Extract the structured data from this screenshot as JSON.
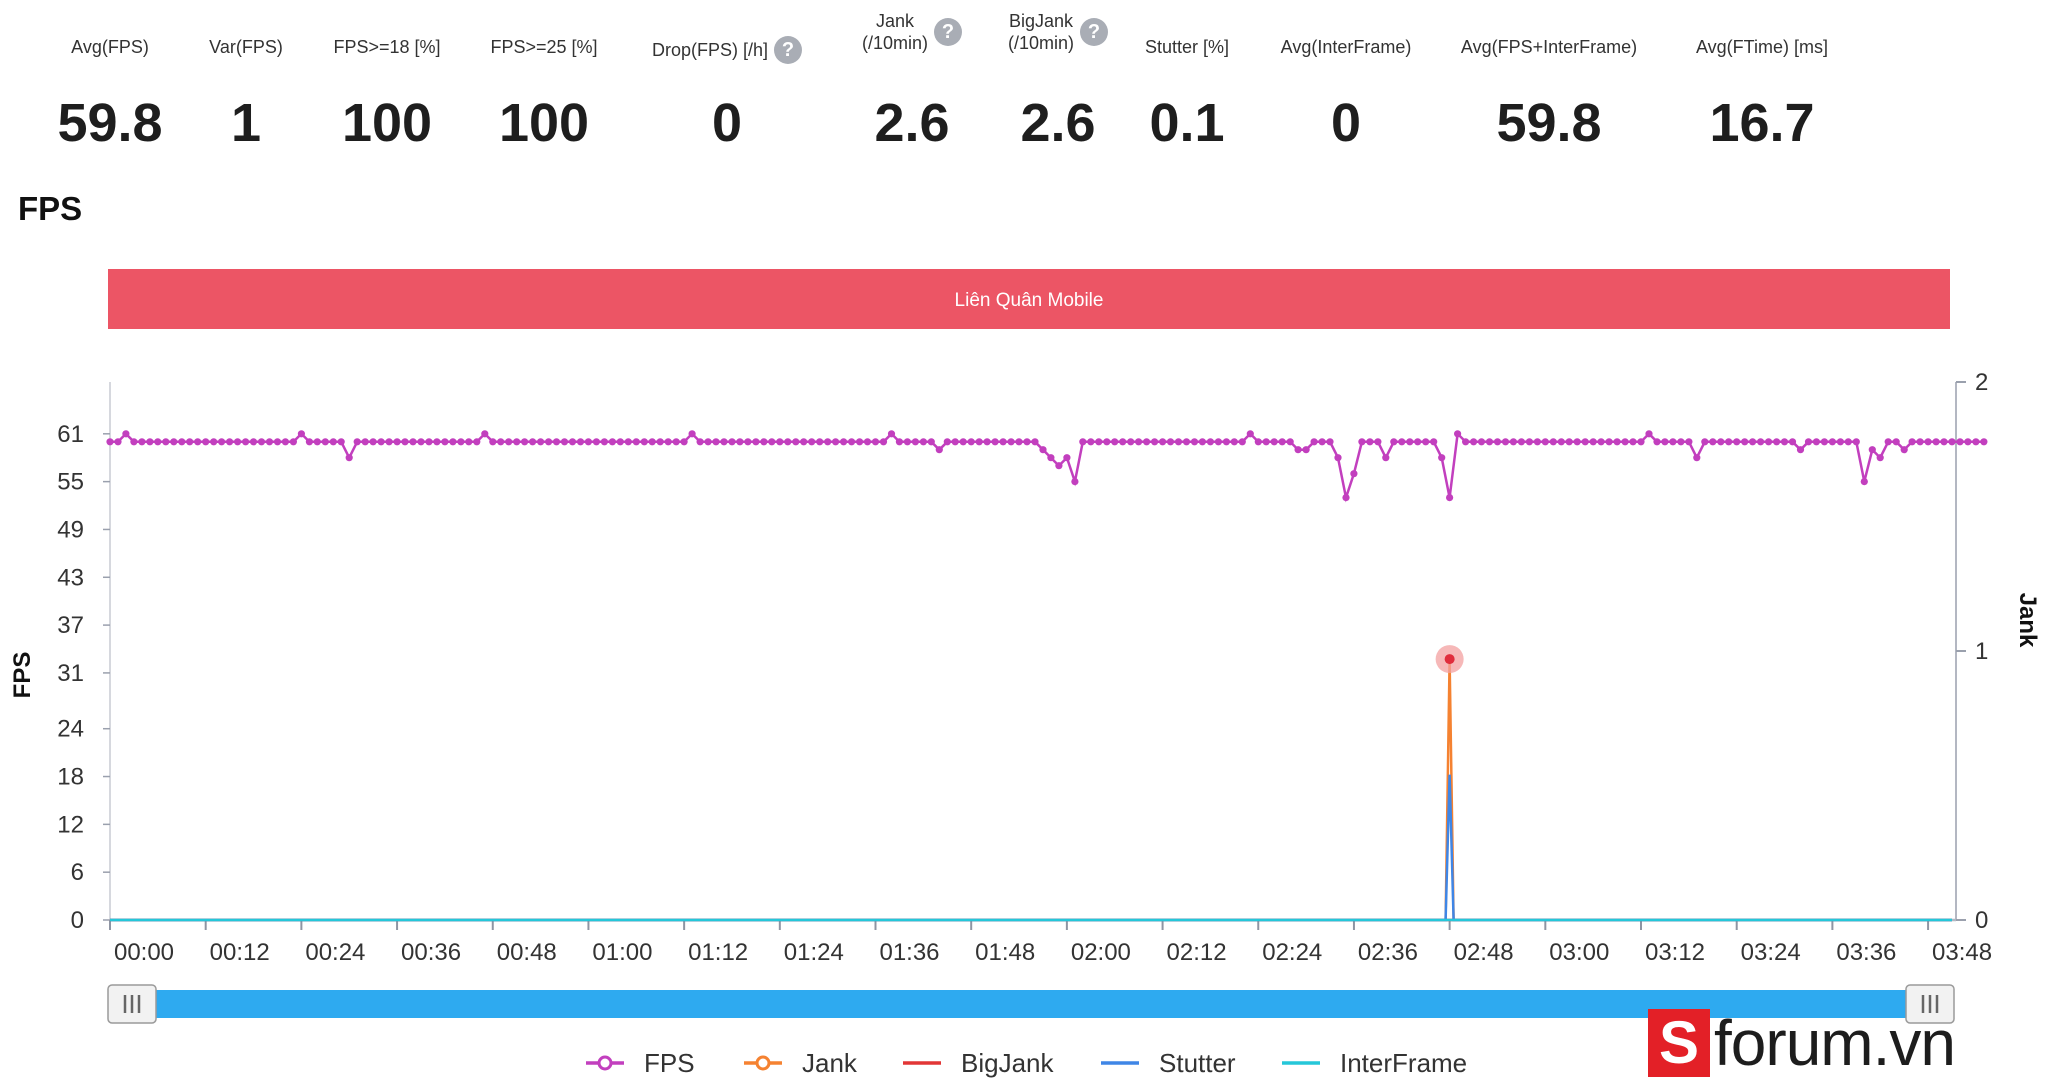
{
  "stats": [
    {
      "label": "Avg(FPS)",
      "value": "59.8",
      "help": false
    },
    {
      "label": "Var(FPS)",
      "value": "1",
      "help": false
    },
    {
      "label": "FPS>=18 [%]",
      "value": "100",
      "help": false
    },
    {
      "label": "FPS>=25 [%]",
      "value": "100",
      "help": false
    },
    {
      "label": "Drop(FPS) [/h]",
      "value": "0",
      "help": true
    },
    {
      "label": "Jank\n(/10min)",
      "value": "2.6",
      "help": true
    },
    {
      "label": "BigJank\n(/10min)",
      "value": "2.6",
      "help": true
    },
    {
      "label": "Stutter [%]",
      "value": "0.1",
      "help": false
    },
    {
      "label": "Avg(InterFrame)",
      "value": "0",
      "help": false
    },
    {
      "label": "Avg(FPS+InterFrame)",
      "value": "59.8",
      "help": false
    },
    {
      "label": "Avg(FTime) [ms]",
      "value": "16.7",
      "help": false
    }
  ],
  "help_glyph": "?",
  "section_title": "FPS",
  "watermark": {
    "logo": "S",
    "text": "forum.vn"
  },
  "chart_data": {
    "type": "line",
    "app_band_label": "Liên Quân Mobile",
    "app_band_color": "#ec5565",
    "x_ticks": [
      "00:00",
      "00:12",
      "00:24",
      "00:36",
      "00:48",
      "01:00",
      "01:12",
      "01:24",
      "01:36",
      "01:48",
      "02:00",
      "02:12",
      "02:24",
      "02:36",
      "02:48",
      "03:00",
      "03:12",
      "03:24",
      "03:36",
      "03:48"
    ],
    "x_range_seconds": [
      0,
      231
    ],
    "y_left_label": "FPS",
    "y_left_ticks": [
      0,
      6,
      12,
      18,
      24,
      31,
      37,
      43,
      49,
      55,
      61
    ],
    "y_left_range": [
      0,
      67.5
    ],
    "y_right_label": "Jank",
    "y_right_ticks": [
      0,
      1,
      2
    ],
    "y_right_range": [
      0,
      2
    ],
    "grid": false,
    "legend_position": "bottom",
    "series": [
      {
        "name": "FPS",
        "axis": "left",
        "color": "#c23fbe",
        "markers": true,
        "interval_seconds": 1,
        "values": [
          60,
          60,
          61,
          60,
          60,
          60,
          60,
          60,
          60,
          60,
          60,
          60,
          60,
          60,
          60,
          60,
          60,
          60,
          60,
          60,
          60,
          60,
          60,
          60,
          61,
          60,
          60,
          60,
          60,
          60,
          58,
          60,
          60,
          60,
          60,
          60,
          60,
          60,
          60,
          60,
          60,
          60,
          60,
          60,
          60,
          60,
          60,
          61,
          60,
          60,
          60,
          60,
          60,
          60,
          60,
          60,
          60,
          60,
          60,
          60,
          60,
          60,
          60,
          60,
          60,
          60,
          60,
          60,
          60,
          60,
          60,
          60,
          60,
          61,
          60,
          60,
          60,
          60,
          60,
          60,
          60,
          60,
          60,
          60,
          60,
          60,
          60,
          60,
          60,
          60,
          60,
          60,
          60,
          60,
          60,
          60,
          60,
          60,
          61,
          60,
          60,
          60,
          60,
          60,
          59,
          60,
          60,
          60,
          60,
          60,
          60,
          60,
          60,
          60,
          60,
          60,
          60,
          59,
          58,
          57,
          58,
          55,
          60,
          60,
          60,
          60,
          60,
          60,
          60,
          60,
          60,
          60,
          60,
          60,
          60,
          60,
          60,
          60,
          60,
          60,
          60,
          60,
          60,
          61,
          60,
          60,
          60,
          60,
          60,
          59,
          59,
          60,
          60,
          60,
          58,
          53,
          56,
          60,
          60,
          60,
          58,
          60,
          60,
          60,
          60,
          60,
          60,
          58,
          53,
          61,
          60,
          60,
          60,
          60,
          60,
          60,
          60,
          60,
          60,
          60,
          60,
          60,
          60,
          60,
          60,
          60,
          60,
          60,
          60,
          60,
          60,
          60,
          60,
          61,
          60,
          60,
          60,
          60,
          60,
          58,
          60,
          60,
          60,
          60,
          60,
          60,
          60,
          60,
          60,
          60,
          60,
          60,
          59,
          60,
          60,
          60,
          60,
          60,
          60,
          60,
          55,
          59,
          58,
          60,
          60,
          59,
          60,
          60,
          60,
          60,
          60,
          60,
          60,
          60,
          60,
          60
        ]
      },
      {
        "name": "Jank",
        "axis": "right",
        "color": "#f58231",
        "markers": true,
        "points": [
          {
            "t": 0,
            "v": 0
          },
          {
            "t": 167,
            "v": 0
          },
          {
            "t": 167.5,
            "v": 0
          },
          {
            "t": 168,
            "v": 0.97
          },
          {
            "t": 168.5,
            "v": 0
          },
          {
            "t": 231,
            "v": 0
          }
        ]
      },
      {
        "name": "BigJank",
        "axis": "right",
        "color": "#e23636",
        "markers": false,
        "points": [
          {
            "t": 0,
            "v": 0
          },
          {
            "t": 231,
            "v": 0
          }
        ]
      },
      {
        "name": "Stutter",
        "axis": "right",
        "color": "#3f86e6",
        "markers": false,
        "points": [
          {
            "t": 0,
            "v": 0
          },
          {
            "t": 167.5,
            "v": 0
          },
          {
            "t": 168,
            "v": 0.54
          },
          {
            "t": 168.5,
            "v": 0
          },
          {
            "t": 231,
            "v": 0
          }
        ]
      },
      {
        "name": "InterFrame",
        "axis": "right",
        "color": "#25c7d9",
        "markers": false,
        "points": [
          {
            "t": 0,
            "v": 0
          },
          {
            "t": 231,
            "v": 0
          }
        ]
      }
    ]
  }
}
